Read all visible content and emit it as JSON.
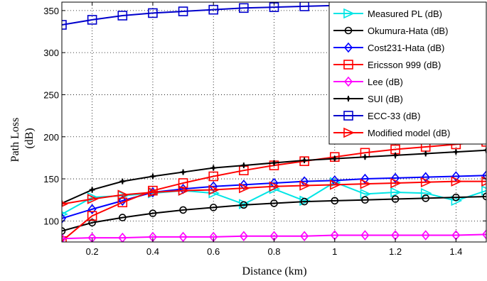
{
  "chart_data": {
    "type": "line",
    "title": "",
    "xlabel": "Distance (km)",
    "ylabel": [
      "Path Loss",
      "(dB)"
    ],
    "xlim": [
      0.1,
      1.5
    ],
    "ylim": [
      75,
      360
    ],
    "xticks": [
      0.2,
      0.4,
      0.6,
      0.8,
      1,
      1.2,
      1.4
    ],
    "xtick_labels": [
      "0.2",
      "0.4",
      "0.6",
      "0.8",
      "1",
      "1.2",
      "1.4"
    ],
    "yticks": [
      100,
      150,
      200,
      250,
      300,
      350
    ],
    "ytick_labels": [
      "100",
      "150",
      "200",
      "250",
      "300",
      "350"
    ],
    "grid": true,
    "legend_position": "top-right",
    "x": [
      0.1,
      0.2,
      0.3,
      0.4,
      0.5,
      0.6,
      0.7,
      0.8,
      0.9,
      1.0,
      1.1,
      1.2,
      1.3,
      1.4,
      1.5
    ],
    "series": [
      {
        "name": "Measured PL (dB)",
        "color": "#00e5e5",
        "marker": "triangle-right",
        "values": [
          108,
          128,
          130,
          133,
          136,
          133,
          120,
          138,
          124,
          146,
          132,
          134,
          133,
          124,
          136
        ]
      },
      {
        "name": "Okumura-Hata (dB)",
        "color": "#000000",
        "marker": "circle",
        "values": [
          88,
          98,
          104,
          109,
          113,
          116,
          119,
          121,
          123,
          124,
          125,
          126,
          127,
          128,
          129
        ]
      },
      {
        "name": "Cost231-Hata (dB)",
        "color": "#0000ff",
        "marker": "diamond",
        "values": [
          103,
          114,
          124,
          134,
          138,
          141,
          143,
          145,
          147,
          148,
          150,
          151,
          152,
          153,
          154
        ]
      },
      {
        "name": "Ericsson 999 (dB)",
        "color": "#ff0000",
        "marker": "square",
        "values": [
          76,
          106,
          122,
          136,
          145,
          153,
          160,
          166,
          171,
          176,
          181,
          185,
          188,
          191,
          194
        ]
      },
      {
        "name": "Lee (dB)",
        "color": "#ff00ff",
        "marker": "diamond",
        "values": [
          79,
          80,
          80,
          81,
          81,
          81,
          82,
          82,
          82,
          83,
          83,
          83,
          83,
          83,
          84
        ]
      },
      {
        "name": "SUI (dB)",
        "color": "#000000",
        "marker": "star",
        "values": [
          121,
          137,
          147,
          153,
          158,
          163,
          166,
          169,
          172,
          174,
          176,
          178,
          180,
          182,
          184
        ]
      },
      {
        "name": "ECC-33 (dB)",
        "color": "#0000cc",
        "marker": "square",
        "values": [
          333,
          339,
          344,
          347,
          349,
          351,
          353,
          354,
          355,
          356,
          357,
          358,
          359,
          359,
          360
        ]
      },
      {
        "name": "Modified model (dB)",
        "color": "#ff0000",
        "marker": "triangle-right",
        "values": [
          120,
          126,
          131,
          134,
          136,
          137,
          139,
          141,
          142,
          143,
          144,
          145,
          146,
          147,
          147
        ]
      }
    ]
  }
}
